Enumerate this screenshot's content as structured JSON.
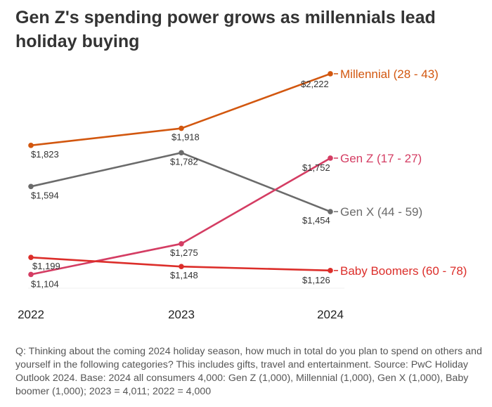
{
  "title": "Gen Z's spending power grows as millennials lead holiday buying",
  "footnote": "Q: Thinking about the coming 2024 holiday season, how much in total do you plan to spend on others and yourself in the following categories? This includes gifts, travel and entertainment. Source: PwC Holiday Outlook 2024. Base: 2024 all consumers 4,000: Gen Z (1,000), Millennial (1,000), Gen X (1,000), Baby boomer (1,000); 2023 = 4,011; 2022 = 4,000",
  "chart_data": {
    "type": "line",
    "title": "Gen Z's spending power grows as millennials lead holiday buying",
    "xlabel": "",
    "ylabel": "",
    "categories": [
      "2022",
      "2023",
      "2024"
    ],
    "ylim": [
      1000,
      2300
    ],
    "grid": false,
    "series": [
      {
        "name": "Millennial (28 - 43)",
        "color": "#d2570f",
        "values": [
          1823,
          1918,
          2222
        ],
        "labels": [
          "$1,823",
          "$1,918",
          "$2,222"
        ]
      },
      {
        "name": "Gen X (44 - 59)",
        "color": "#6b6b6b",
        "values": [
          1594,
          1782,
          1454
        ],
        "labels": [
          "$1,594",
          "$1,782",
          "$1,454"
        ]
      },
      {
        "name": "Gen Z (17 - 27)",
        "color": "#d43d63",
        "values": [
          1104,
          1275,
          1752
        ],
        "labels": [
          "$1,104",
          "$1,275",
          "$1,752"
        ]
      },
      {
        "name": "Baby Boomers (60 - 78)",
        "color": "#dc2e2a",
        "values": [
          1199,
          1148,
          1126
        ],
        "labels": [
          "$1,199",
          "$1,148",
          "$1,126"
        ]
      }
    ]
  }
}
